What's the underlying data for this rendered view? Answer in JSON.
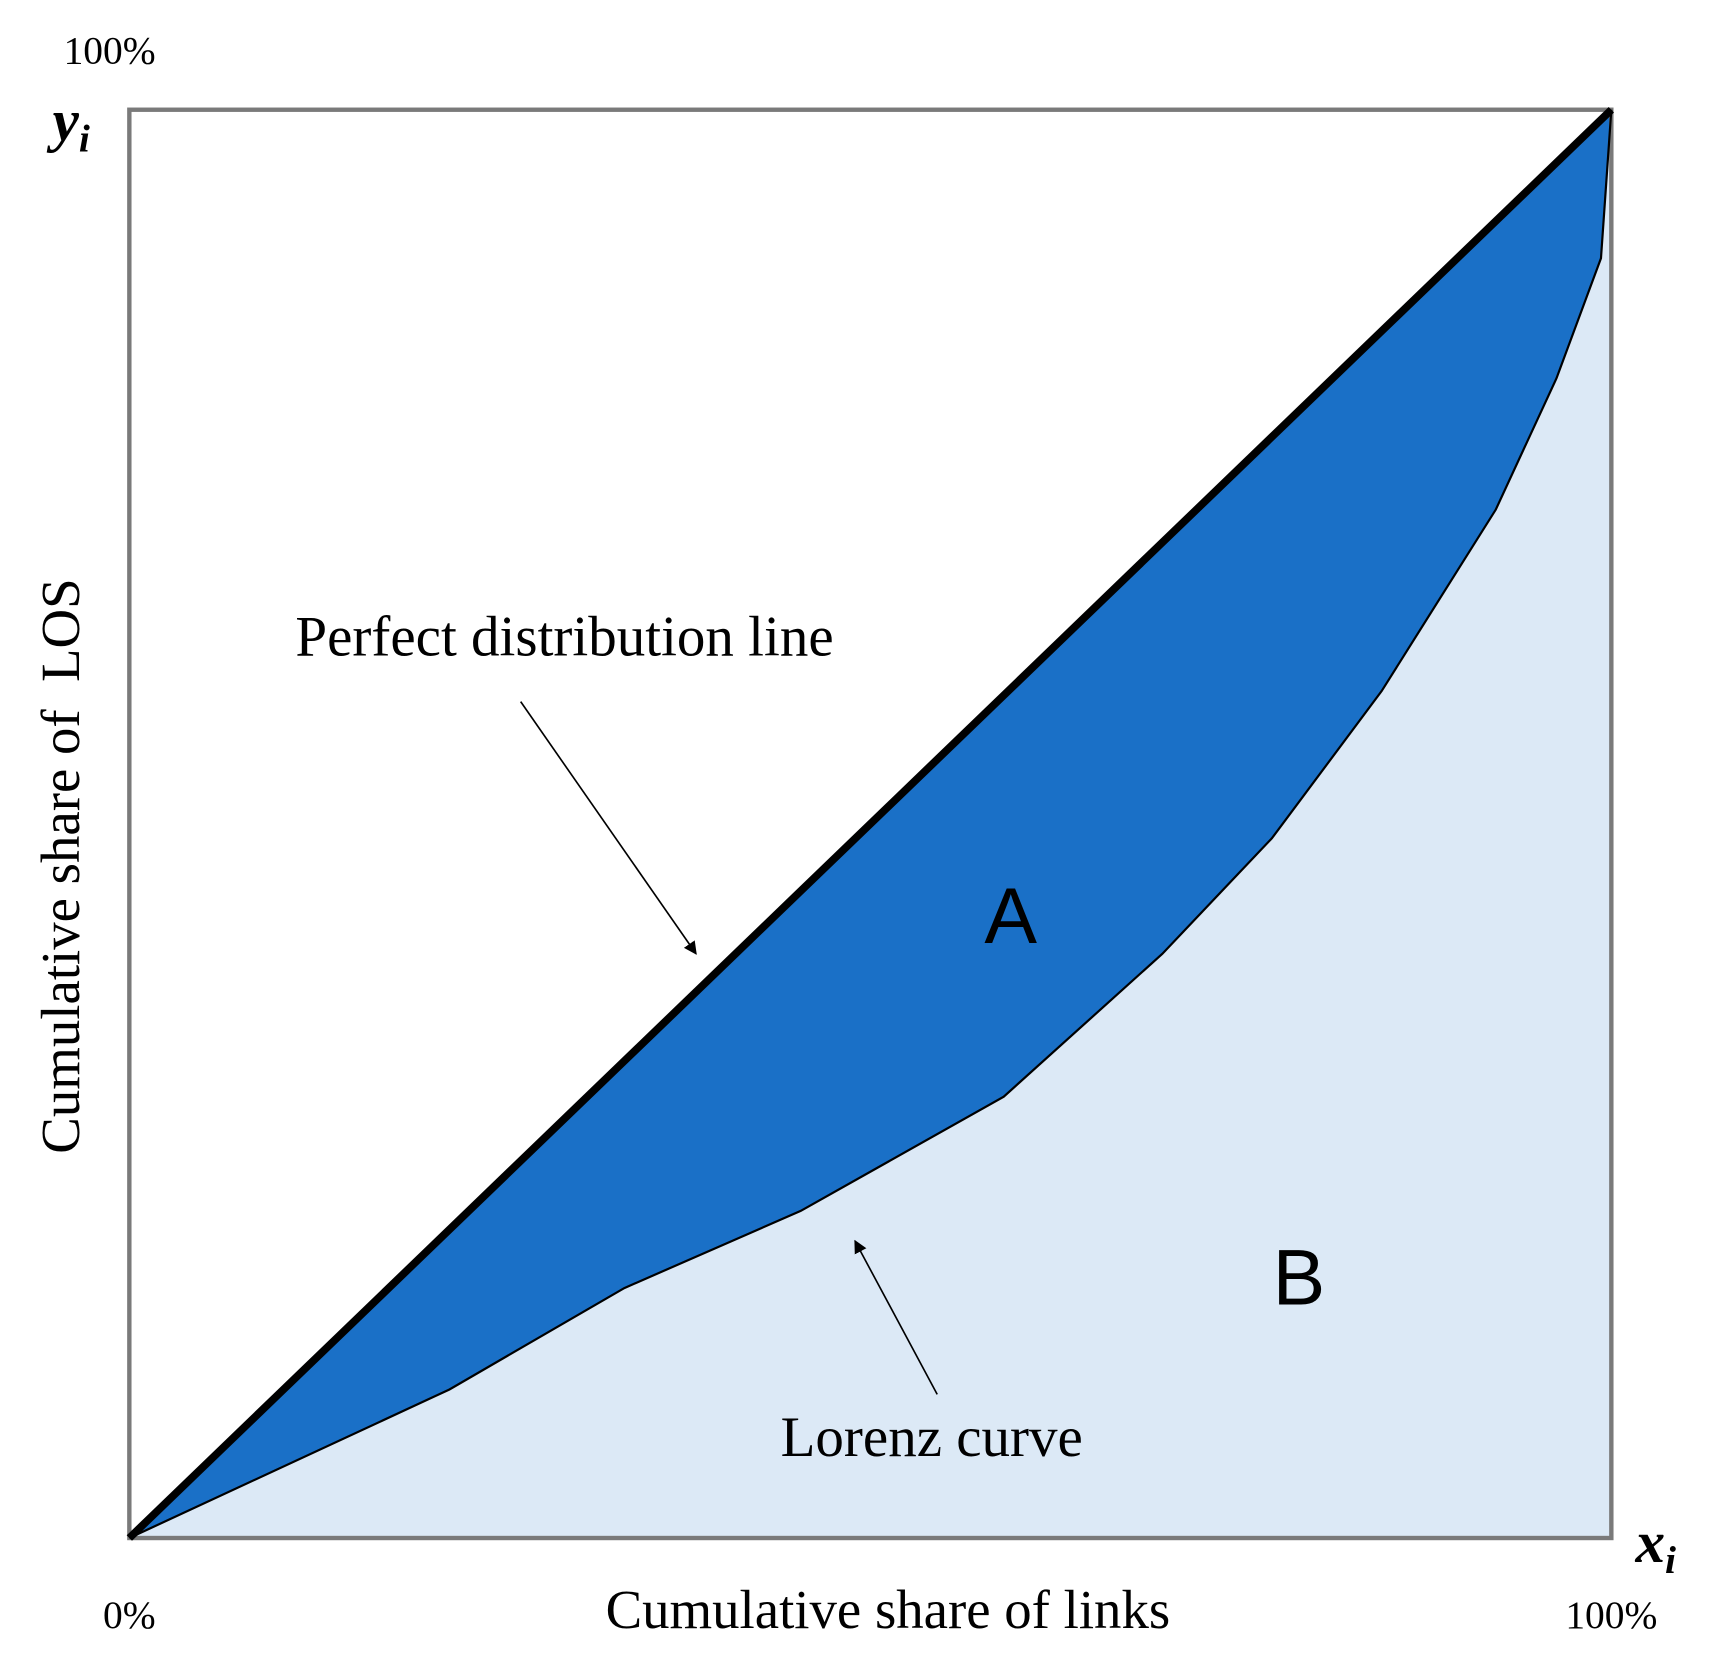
{
  "chart_data": {
    "type": "lorenz",
    "xlabel": "Cumulative share of links",
    "ylabel": "Cumulative share of  LOS",
    "x_symbol": {
      "text": "x",
      "subscript": "i"
    },
    "y_symbol": {
      "text": "y",
      "subscript": "i"
    },
    "xlim": [
      0,
      100
    ],
    "ylim": [
      0,
      100
    ],
    "xticks": [
      {
        "value": 0,
        "label": "0%"
      },
      {
        "value": 100,
        "label": "100%"
      }
    ],
    "yticks": [
      {
        "value": 100,
        "label": "100%"
      }
    ],
    "series": [
      {
        "name": "Perfect distribution line",
        "color": "#000000",
        "x": [
          0,
          100
        ],
        "values": [
          0,
          100
        ]
      },
      {
        "name": "Lorenz curve",
        "color": "#000000",
        "fill_above": "#1a70c7",
        "fill_below": "#dce9f6",
        "x": [
          0,
          21.6,
          33.4,
          45.3,
          59.0,
          69.7,
          77.1,
          84.5,
          92.2,
          96.3,
          99.3,
          100
        ],
        "values": [
          0,
          10.4,
          17.5,
          22.9,
          30.9,
          40.9,
          49.0,
          59.3,
          72.0,
          81.2,
          89.6,
          100
        ]
      }
    ],
    "region_labels": [
      "A",
      "B"
    ]
  }
}
